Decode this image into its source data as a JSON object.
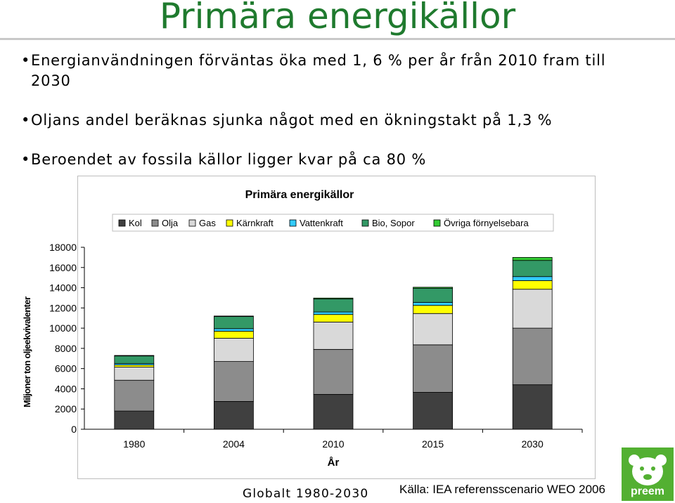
{
  "slide": {
    "title": "Primära energikällor",
    "bullets": [
      "Energianvändningen förväntas öka med 1, 6 % per år från 2010 fram till 2030",
      "Oljans andel beräknas sjunka något med en ökningstakt på 1,3 %",
      "Beroendet av fossila källor ligger kvar på ca 80 %"
    ],
    "footer_left": "Globalt 1980-2030",
    "footer_right": "Källa: IEA referensscenario WEO 2006",
    "logo_text": "preem",
    "title_color": "#1f7a2e",
    "logo_color": "#53b032"
  },
  "chart_data": {
    "type": "bar",
    "stacked": true,
    "title": "Primära energikällor",
    "xlabel": "År",
    "ylabel": "Miljoner ton oljeekvivalenter",
    "ylim": [
      0,
      18000
    ],
    "yticks": [
      0,
      2000,
      4000,
      6000,
      8000,
      10000,
      12000,
      14000,
      16000,
      18000
    ],
    "categories": [
      "1980",
      "2004",
      "2010",
      "2015",
      "2030"
    ],
    "legend_position": "top",
    "series": [
      {
        "name": "Kol",
        "color": "#404040",
        "values": [
          1800,
          2750,
          3450,
          3650,
          4400
        ]
      },
      {
        "name": "Olja",
        "color": "#8c8c8c",
        "values": [
          3050,
          3950,
          4450,
          4700,
          5600
        ]
      },
      {
        "name": "Gas",
        "color": "#d9d9d9",
        "values": [
          1300,
          2300,
          2700,
          3100,
          3850
        ]
      },
      {
        "name": "Kärnkraft",
        "color": "#ffff00",
        "values": [
          200,
          700,
          750,
          800,
          850
        ]
      },
      {
        "name": "Vattenkraft",
        "color": "#33ccff",
        "values": [
          150,
          250,
          250,
          300,
          400
        ]
      },
      {
        "name": "Bio, Sopor",
        "color": "#339966",
        "values": [
          750,
          1200,
          1300,
          1400,
          1600
        ]
      },
      {
        "name": "Övriga förnyelsebara",
        "color": "#33cc33",
        "values": [
          50,
          50,
          80,
          100,
          300
        ]
      }
    ]
  }
}
